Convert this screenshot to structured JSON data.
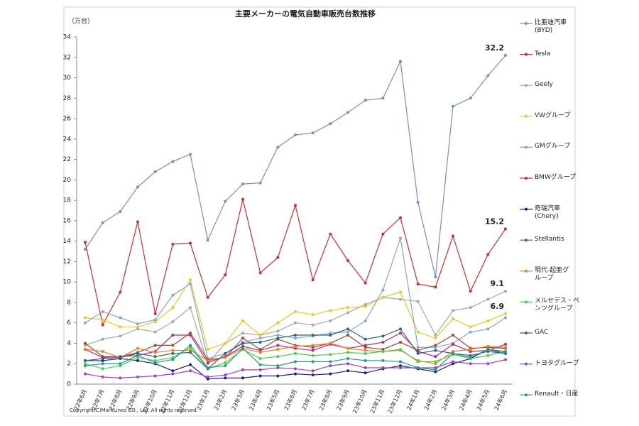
{
  "chart_data": {
    "type": "line",
    "title": "主要メーカーの電気自動車販売台数推移",
    "y_unit": "（万台）",
    "footnote": "Copyright(C)MarkLines CO., Ltd. All rights reserved.",
    "categories": [
      "22年6月",
      "22年7月",
      "22年8月",
      "22年9月",
      "22年10月",
      "22年11月",
      "22年12月",
      "23年1月",
      "23年2月",
      "23年3月",
      "23年4月",
      "23年5月",
      "23年6月",
      "23年7月",
      "23年8月",
      "23年9月",
      "23年10月",
      "23年11月",
      "23年12月",
      "24年1月",
      "24年2月",
      "24年3月",
      "24年4月",
      "24年5月",
      "24年6月"
    ],
    "ylim": [
      0,
      34
    ],
    "yticks": [
      0,
      2,
      4,
      6,
      8,
      10,
      12,
      14,
      16,
      18,
      20,
      22,
      24,
      26,
      28,
      30,
      32,
      34
    ],
    "grid": false,
    "legend": "right",
    "series": [
      {
        "name": "比亜迪汽車\n(BYD)",
        "color": "#6f8fd0",
        "show_last_label": true,
        "values": [
          13.2,
          15.8,
          16.9,
          19.3,
          20.8,
          21.8,
          22.5,
          14.1,
          17.9,
          19.6,
          19.7,
          23.2,
          24.4,
          24.6,
          25.5,
          26.6,
          27.8,
          28.0,
          31.6,
          17.8,
          10.5,
          27.2,
          28.0,
          30.2,
          32.2
        ]
      },
      {
        "name": "Tesla",
        "color": "#d42a2a",
        "show_last_label": true,
        "values": [
          13.9,
          5.8,
          9.0,
          15.9,
          6.9,
          13.7,
          13.8,
          8.5,
          10.7,
          18.1,
          10.9,
          12.4,
          17.5,
          10.2,
          14.7,
          12.1,
          9.9,
          14.7,
          16.3,
          9.8,
          9.5,
          14.5,
          9.1,
          12.7,
          15.2
        ]
      },
      {
        "name": "Geely",
        "color": "#a6a6a6",
        "show_last_label": true,
        "values": [
          3.8,
          4.4,
          4.7,
          5.4,
          5.1,
          6.1,
          7.5,
          2.0,
          4.0,
          5.0,
          4.8,
          5.2,
          6.0,
          5.8,
          6.2,
          7.0,
          7.8,
          8.5,
          8.3,
          8.1,
          4.8,
          7.2,
          7.5,
          8.3,
          9.1
        ]
      },
      {
        "name": "VWグループ",
        "color": "#f5c518",
        "show_last_label": true,
        "values": [
          6.5,
          6.3,
          5.6,
          5.6,
          6.1,
          7.5,
          10.2,
          3.4,
          4.0,
          6.2,
          4.8,
          6.0,
          7.1,
          6.8,
          7.2,
          7.5,
          7.6,
          8.5,
          9.0,
          5.1,
          4.5,
          6.4,
          5.6,
          6.2,
          6.9
        ]
      },
      {
        "name": "GMグループ",
        "color": "#7fa7d6",
        "values": [
          6.0,
          7.1,
          6.5,
          5.9,
          6.3,
          8.7,
          9.8,
          2.5,
          3.0,
          4.1,
          4.5,
          4.8,
          4.5,
          4.7,
          5.0,
          5.1,
          6.2,
          9.2,
          14.3,
          3.6,
          3.6,
          4.0,
          5.1,
          5.4,
          6.5
        ]
      },
      {
        "name": "BMWグループ",
        "color": "#c8207a",
        "values": [
          3.4,
          2.6,
          2.7,
          2.8,
          3.2,
          4.8,
          4.8,
          2.1,
          2.7,
          3.7,
          3.3,
          3.8,
          3.5,
          3.3,
          3.9,
          3.5,
          3.8,
          4.1,
          5.0,
          3.2,
          2.7,
          3.9,
          3.2,
          3.3,
          3.9
        ]
      },
      {
        "name": "奇瑞汽車\n(Chery)",
        "color": "#1c1c9c",
        "values": [
          2.3,
          2.3,
          2.5,
          2.3,
          2.0,
          1.3,
          1.9,
          0.5,
          0.6,
          0.6,
          0.8,
          0.8,
          1.0,
          0.9,
          1.0,
          1.3,
          1.1,
          1.5,
          1.8,
          1.5,
          1.2,
          2.0,
          2.5,
          3.4,
          3.0
        ]
      },
      {
        "name": "Stellantis",
        "color": "#9b4a2c",
        "values": [
          4.0,
          2.7,
          2.7,
          3.1,
          3.8,
          3.8,
          5.0,
          2.4,
          2.6,
          4.5,
          3.4,
          4.4,
          3.8,
          3.6,
          4.0,
          4.8,
          3.6,
          3.4,
          4.1,
          3.3,
          3.8,
          4.8,
          3.5,
          3.6,
          3.5
        ]
      },
      {
        "name": "現代-起亜グ\nループ",
        "color": "#f07c22",
        "values": [
          3.4,
          3.2,
          2.6,
          3.5,
          3.1,
          3.3,
          3.3,
          2.3,
          2.6,
          3.5,
          3.1,
          3.4,
          3.7,
          3.8,
          4.0,
          3.5,
          3.3,
          3.2,
          3.3,
          2.3,
          2.0,
          3.2,
          3.4,
          3.7,
          3.6
        ]
      },
      {
        "name": "メルセデス・ベ\nンツグループ",
        "color": "#44d444",
        "values": [
          2.0,
          1.5,
          1.8,
          2.6,
          2.3,
          2.6,
          3.6,
          1.5,
          2.1,
          3.4,
          2.5,
          2.7,
          3.0,
          2.8,
          2.9,
          3.1,
          3.0,
          3.2,
          3.4,
          2.2,
          2.2,
          2.9,
          2.5,
          2.8,
          3.2
        ]
      },
      {
        "name": "GAC",
        "color": "#2e6390",
        "values": [
          2.3,
          2.5,
          2.6,
          3.0,
          2.7,
          3.0,
          3.1,
          1.5,
          3.0,
          4.0,
          4.1,
          4.5,
          4.8,
          4.8,
          4.8,
          5.4,
          4.4,
          4.7,
          5.4,
          3.0,
          3.3,
          3.0,
          2.8,
          3.2,
          3.0
        ]
      },
      {
        "name": "トヨタグループ",
        "color": "#9b40c8",
        "values": [
          1.0,
          0.7,
          0.6,
          0.7,
          0.8,
          1.0,
          1.3,
          0.7,
          0.9,
          1.4,
          1.4,
          1.6,
          1.5,
          1.3,
          1.8,
          2.0,
          1.6,
          1.6,
          1.6,
          1.6,
          1.6,
          2.2,
          2.0,
          2.0,
          2.4
        ]
      },
      {
        "name": "Renault・日産",
        "color": "#1fa37a",
        "values": [
          1.8,
          2.0,
          2.0,
          2.8,
          2.1,
          2.4,
          3.8,
          1.6,
          1.8,
          3.5,
          1.9,
          1.8,
          2.2,
          2.2,
          2.2,
          2.5,
          2.3,
          2.3,
          2.2,
          1.6,
          1.4,
          3.0,
          2.6,
          3.4,
          3.2
        ]
      }
    ]
  }
}
